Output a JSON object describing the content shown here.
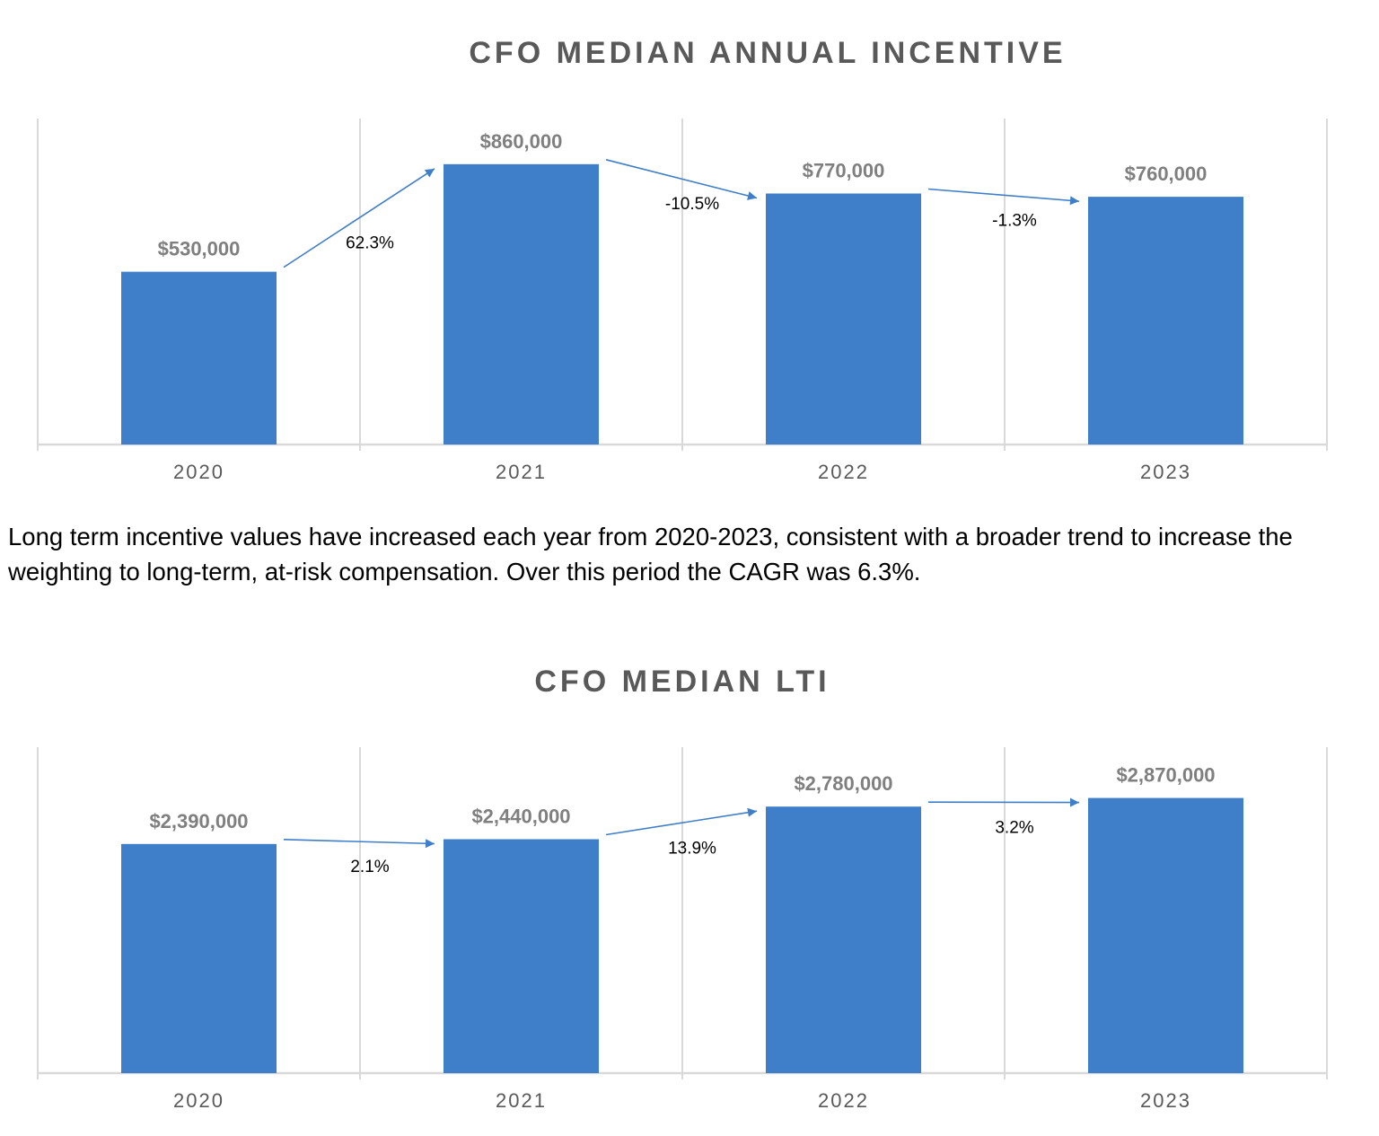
{
  "chart_data": [
    {
      "type": "bar",
      "title": "CFO MEDIAN ANNUAL INCENTIVE",
      "categories": [
        "2020",
        "2021",
        "2022",
        "2023"
      ],
      "values": [
        530000,
        860000,
        770000,
        760000
      ],
      "data_labels": [
        "$530,000",
        "$860,000",
        "$770,000",
        "$760,000"
      ],
      "changes": [
        "62.3%",
        "-10.5%",
        "-1.3%"
      ],
      "ylim": [
        0,
        1000000
      ],
      "grid": "vertical",
      "bar_color": "#3f7ec8"
    },
    {
      "type": "bar",
      "title": "CFO MEDIAN LTI",
      "categories": [
        "2020",
        "2021",
        "2022",
        "2023"
      ],
      "values": [
        2390000,
        2440000,
        2780000,
        2870000
      ],
      "data_labels": [
        "$2,390,000",
        "$2,440,000",
        "$2,780,000",
        "$2,870,000"
      ],
      "changes": [
        "2.1%",
        "13.9%",
        "3.2%"
      ],
      "ylim": [
        0,
        3400000
      ],
      "grid": "vertical",
      "bar_color": "#3f7ec8"
    }
  ],
  "body_text": "Long term incentive values have increased each year from 2020-2023, consistent with a broader trend to increase the weighting to long-term, at-risk compensation. Over this period the CAGR was 6.3%.",
  "colors": {
    "bar": "#3f7ec8",
    "arrow": "#3f7ec8",
    "grid": "#d9d9d9",
    "title": "#595959",
    "data_label": "#7f7f7f"
  }
}
